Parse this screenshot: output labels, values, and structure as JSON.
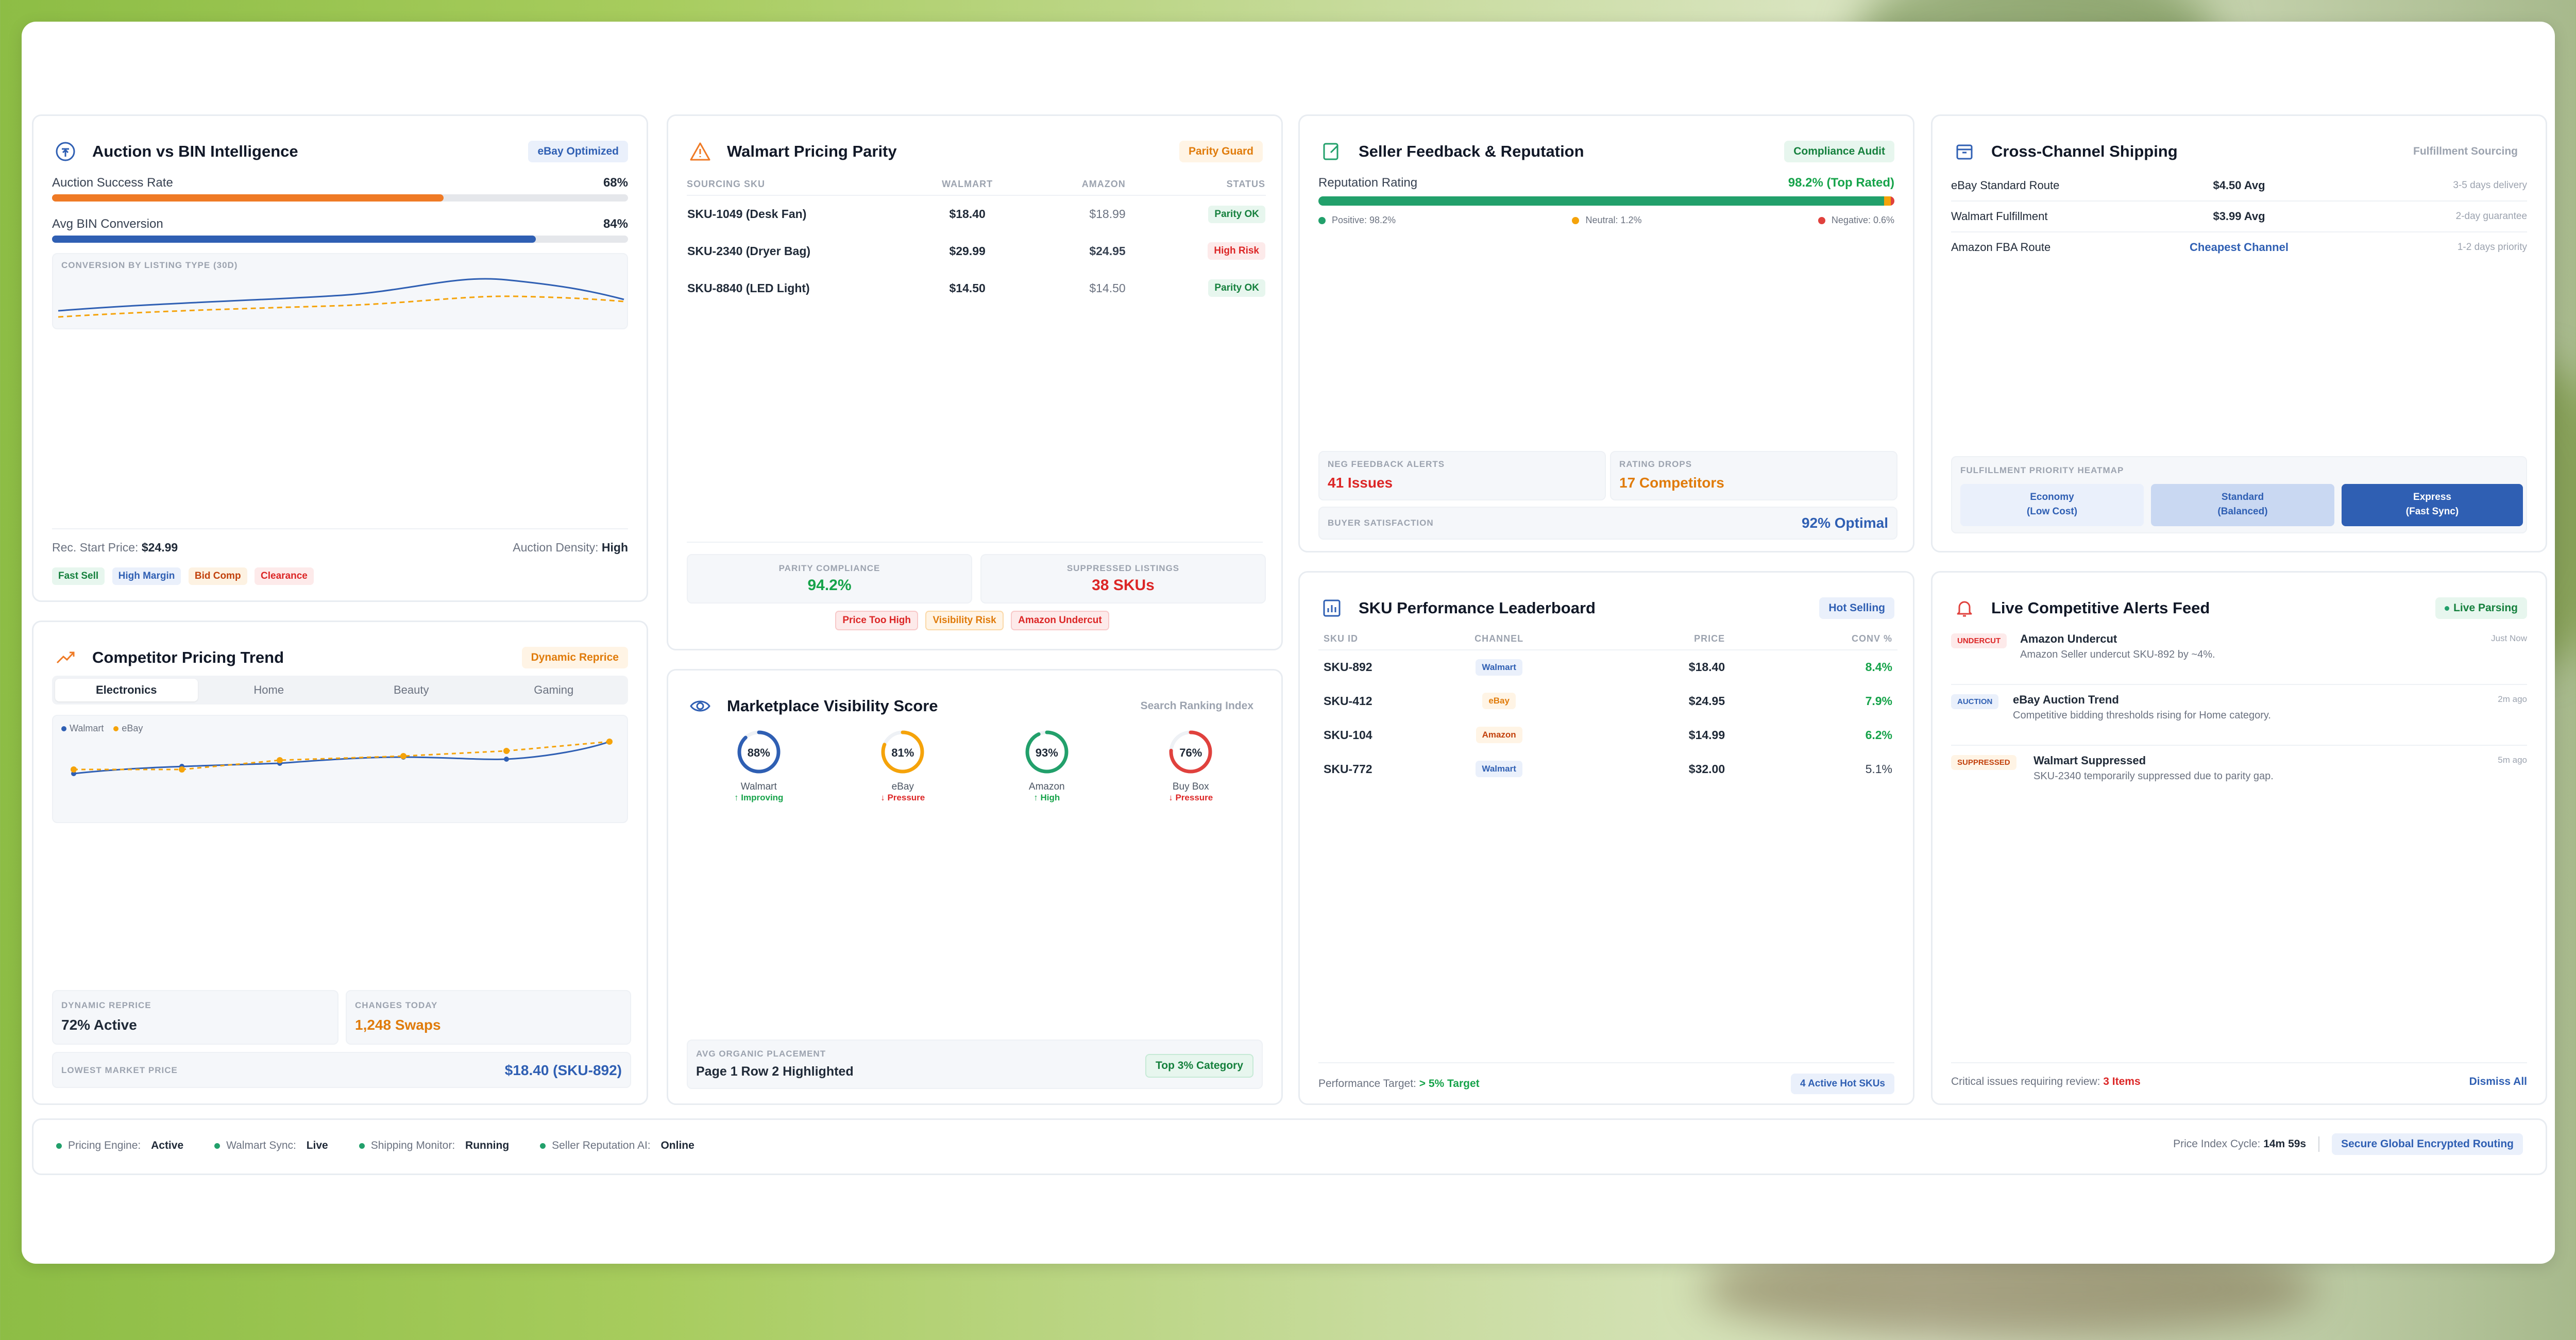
{
  "auction": {
    "title": "Auction vs BIN Intelligence",
    "badge": "eBay Optimized",
    "success_label": "Auction Success Rate",
    "success_value": "68%",
    "success_pct": 68,
    "bin_label": "Avg BIN Conversion",
    "bin_value": "84%",
    "bin_pct": 84,
    "chart_label": "CONVERSION BY LISTING TYPE (30D)",
    "start_price_label": "Rec. Start Price:",
    "start_price_value": "$24.99",
    "density_label": "Auction Density:",
    "density_value": "High",
    "tags": [
      "Fast Sell",
      "High Margin",
      "Bid Comp",
      "Clearance"
    ]
  },
  "parity": {
    "title": "Walmart Pricing Parity",
    "badge": "Parity Guard",
    "headers": [
      "SOURCING SKU",
      "WALMART",
      "AMAZON",
      "STATUS"
    ],
    "rows": [
      {
        "sku": "SKU-1049 (Desk Fan)",
        "walmart": "$18.40",
        "amazon": "$18.99",
        "status": "Parity OK"
      },
      {
        "sku": "SKU-2340 (Dryer Bag)",
        "walmart": "$29.99",
        "amazon": "$24.95",
        "status": "High Risk"
      },
      {
        "sku": "SKU-8840 (LED Light)",
        "walmart": "$14.50",
        "amazon": "$14.50",
        "status": "Parity OK"
      }
    ],
    "compliance_label": "PARITY COMPLIANCE",
    "compliance_value": "94.2%",
    "suppressed_label": "SUPPRESSED LISTINGS",
    "suppressed_value": "38 SKUs",
    "tags": [
      "Price Too High",
      "Visibility Risk",
      "Amazon Undercut"
    ]
  },
  "feedback": {
    "title": "Seller Feedback & Reputation",
    "badge": "Compliance Audit",
    "rating_label": "Reputation Rating",
    "rating_value": "98.2% (Top Rated)",
    "positive": "Positive: 98.2%",
    "neutral": "Neutral: 1.2%",
    "negative": "Negative: 0.6%",
    "neg_label": "NEG FEEDBACK ALERTS",
    "neg_value": "41 Issues",
    "drops_label": "RATING DROPS",
    "drops_value": "17 Competitors",
    "satisfaction_label": "BUYER SATISFACTION",
    "satisfaction_value": "92% Optimal"
  },
  "shipping": {
    "title": "Cross-Channel Shipping",
    "badge": "Fulfillment Sourcing",
    "rows": [
      {
        "route": "eBay Standard Route",
        "price": "$4.50 Avg",
        "eta": "3-5 days delivery"
      },
      {
        "route": "Walmart Fulfillment",
        "price": "$3.99 Avg",
        "eta": "2-day guarantee"
      },
      {
        "route": "Amazon FBA Route",
        "price": "Cheapest Channel",
        "eta": "1-2 days priority"
      }
    ],
    "heatmap_label": "FULFILLMENT PRIORITY HEATMAP",
    "heat": [
      {
        "l1": "Economy",
        "l2": "(Low Cost)"
      },
      {
        "l1": "Standard",
        "l2": "(Balanced)"
      },
      {
        "l1": "Express",
        "l2": "(Fast Sync)"
      }
    ]
  },
  "trend": {
    "title": "Competitor Pricing Trend",
    "badge": "Dynamic Reprice",
    "tabs": [
      "Electronics",
      "Home",
      "Beauty",
      "Gaming"
    ],
    "legend_walmart": "Walmart",
    "legend_ebay": "eBay",
    "reprice_label": "DYNAMIC REPRICE",
    "reprice_value": "72% Active",
    "changes_label": "CHANGES TODAY",
    "changes_value": "1,248 Swaps",
    "lowest_label": "LOWEST MARKET PRICE",
    "lowest_value": "$18.40 (SKU-892)"
  },
  "visibility": {
    "title": "Marketplace Visibility Score",
    "badge": "Search Ranking Index",
    "gauges": [
      {
        "name": "Walmart",
        "value": 88,
        "label": "88%",
        "trend": "↑ Improving",
        "color": "#2f5fb3",
        "trend_color": "#16a34a"
      },
      {
        "name": "eBay",
        "value": 81,
        "label": "81%",
        "trend": "↓ Pressure",
        "color": "#f5a30a",
        "trend_color": "#dc2626"
      },
      {
        "name": "Amazon",
        "value": 93,
        "label": "93%",
        "trend": "↑ High",
        "color": "#22a06b",
        "trend_color": "#16a34a"
      },
      {
        "name": "Buy Box",
        "value": 76,
        "label": "76%",
        "trend": "↓ Pressure",
        "color": "#e0413d",
        "trend_color": "#dc2626"
      }
    ],
    "placement_label": "AVG ORGANIC PLACEMENT",
    "placement_value": "Page 1 Row 2 Highlighted",
    "placement_badge": "Top 3% Category"
  },
  "leaderboard": {
    "title": "SKU Performance Leaderboard",
    "badge": "Hot Selling",
    "headers": [
      "SKU ID",
      "CHANNEL",
      "PRICE",
      "CONV %"
    ],
    "rows": [
      {
        "sku": "SKU-892",
        "channel": "Walmart",
        "price": "$18.40",
        "conv": "8.4%"
      },
      {
        "sku": "SKU-412",
        "channel": "eBay",
        "price": "$24.95",
        "conv": "7.9%"
      },
      {
        "sku": "SKU-104",
        "channel": "Amazon",
        "price": "$14.99",
        "conv": "6.2%"
      },
      {
        "sku": "SKU-772",
        "channel": "Walmart",
        "price": "$32.00",
        "conv": "5.1%"
      }
    ],
    "target_label": "Performance Target:",
    "target_value": "> 5% Target",
    "active_badge": "4 Active Hot SKUs"
  },
  "alerts": {
    "title": "Live Competitive Alerts Feed",
    "badge": "Live Parsing",
    "items": [
      {
        "tag": "UNDERCUT",
        "title": "Amazon Undercut",
        "desc": "Amazon Seller undercut SKU-892 by ~4%.",
        "time": "Just Now"
      },
      {
        "tag": "AUCTION",
        "title": "eBay Auction Trend",
        "desc": "Competitive bidding thresholds rising for Home category.",
        "time": "2m ago"
      },
      {
        "tag": "SUPPRESSED",
        "title": "Walmart Suppressed",
        "desc": "SKU-2340 temporarily suppressed due to parity gap.",
        "time": "5m ago"
      }
    ],
    "footer_label": "Critical issues requiring review:",
    "footer_value": "3 Items",
    "dismiss": "Dismiss All"
  },
  "status": {
    "items": [
      {
        "label": "Pricing Engine:",
        "value": "Active"
      },
      {
        "label": "Walmart Sync:",
        "value": "Live"
      },
      {
        "label": "Shipping Monitor:",
        "value": "Running"
      },
      {
        "label": "Seller Reputation AI:",
        "value": "Online"
      }
    ],
    "cycle_label": "Price Index Cycle:",
    "cycle_value": "14m 59s",
    "secure": "Secure Global Encrypted Routing"
  }
}
